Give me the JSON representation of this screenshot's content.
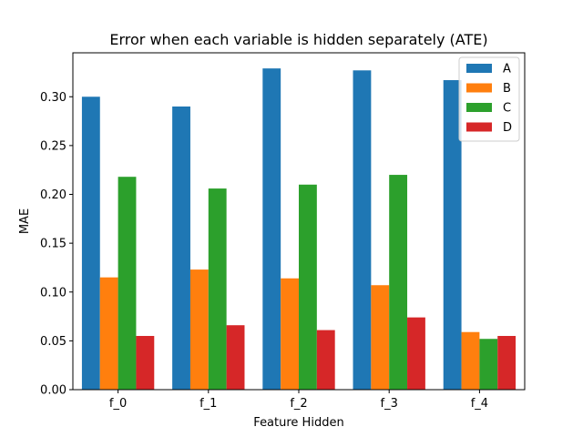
{
  "chart_data": {
    "type": "bar",
    "title": "Error when each variable is hidden separately (ATE)",
    "xlabel": "Feature Hidden",
    "ylabel": "MAE",
    "categories": [
      "f_0",
      "f_1",
      "f_2",
      "f_3",
      "f_4"
    ],
    "ylim": [
      0,
      0.345
    ],
    "yticks": [
      "0.00",
      "0.05",
      "0.10",
      "0.15",
      "0.20",
      "0.25",
      "0.30"
    ],
    "grid": false,
    "legend_position": "top-right",
    "series": [
      {
        "name": "A",
        "color": "#1f77b4",
        "values": [
          0.3,
          0.29,
          0.329,
          0.327,
          0.317
        ]
      },
      {
        "name": "B",
        "color": "#ff7f0e",
        "values": [
          0.115,
          0.123,
          0.114,
          0.107,
          0.059
        ]
      },
      {
        "name": "C",
        "color": "#2ca02c",
        "values": [
          0.218,
          0.206,
          0.21,
          0.22,
          0.052
        ]
      },
      {
        "name": "D",
        "color": "#d62728",
        "values": [
          0.055,
          0.066,
          0.061,
          0.074,
          0.055
        ]
      }
    ]
  }
}
